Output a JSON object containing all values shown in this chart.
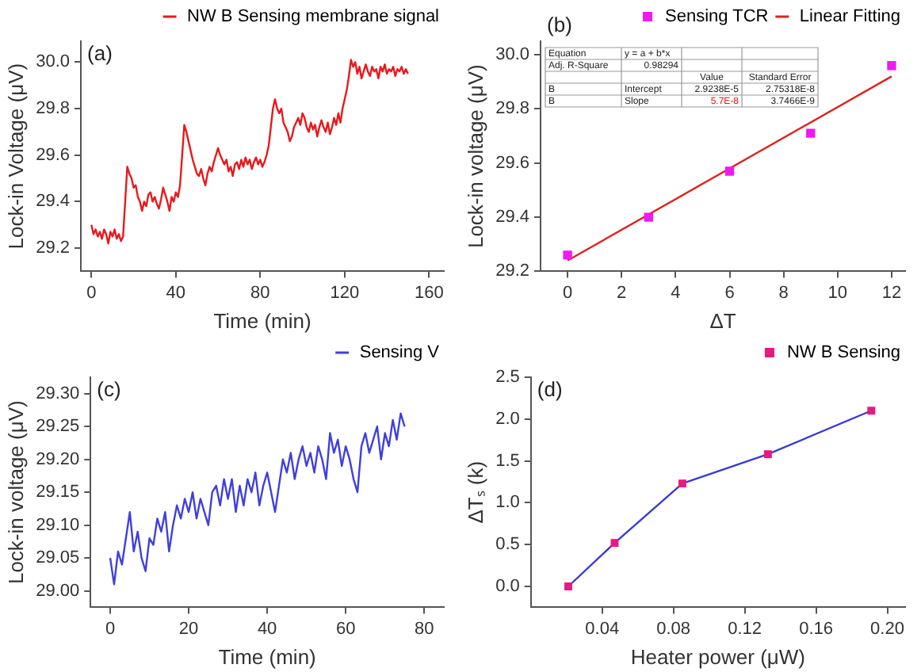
{
  "chart_data": [
    {
      "type": "line",
      "xlabel": "Time (min)",
      "ylabel": "Lock-in Voltage (μV)",
      "annotations": [
        "(a)"
      ],
      "legend": "top right",
      "xlim": [
        -5,
        167
      ],
      "xticks": [
        0,
        40,
        80,
        120,
        160
      ],
      "ylim": [
        29.1,
        30.09
      ],
      "yticks": [
        {
          "value": 29.2,
          "label": "29.2"
        },
        {
          "value": 29.4,
          "label": "29.4"
        },
        {
          "value": 29.6,
          "label": "29.6"
        },
        {
          "value": 29.8,
          "label": "29.8"
        },
        {
          "value": 30.0,
          "label": "30.0"
        }
      ],
      "x": [
        0,
        1,
        2,
        3,
        4,
        5,
        6,
        7,
        8,
        9,
        10,
        11,
        12,
        13,
        14,
        15,
        16,
        17,
        18,
        19,
        20,
        21,
        22,
        23,
        24,
        25,
        26,
        27,
        28,
        29,
        30,
        31,
        32,
        33,
        34,
        35,
        36,
        37,
        38,
        39,
        40,
        41,
        42,
        43,
        44,
        45,
        46,
        47,
        48,
        49,
        50,
        51,
        52,
        53,
        54,
        55,
        56,
        57,
        58,
        59,
        60,
        61,
        62,
        63,
        64,
        65,
        66,
        67,
        68,
        69,
        70,
        71,
        72,
        73,
        74,
        75,
        76,
        77,
        78,
        79,
        80,
        81,
        82,
        83,
        84,
        85,
        86,
        87,
        88,
        89,
        90,
        91,
        92,
        93,
        94,
        95,
        96,
        97,
        98,
        99,
        100,
        101,
        102,
        103,
        104,
        105,
        106,
        107,
        108,
        109,
        110,
        111,
        112,
        113,
        114,
        115,
        116,
        117,
        118,
        119,
        120,
        121,
        122,
        123,
        124,
        125,
        126,
        127,
        128,
        129,
        130,
        131,
        132,
        133,
        134,
        135,
        136,
        137,
        138,
        139,
        140,
        141,
        142,
        143,
        144,
        145,
        146,
        147,
        148,
        149,
        150
      ],
      "series": [
        {
          "name": "NW B Sensing membrane signal",
          "color": "#e8191c",
          "values": [
            29.3,
            29.26,
            29.28,
            29.25,
            29.27,
            29.24,
            29.28,
            29.26,
            29.22,
            29.27,
            29.25,
            29.28,
            29.24,
            29.26,
            29.23,
            29.25,
            29.4,
            29.55,
            29.52,
            29.5,
            29.46,
            29.47,
            29.42,
            29.4,
            29.36,
            29.4,
            29.38,
            29.43,
            29.44,
            29.4,
            29.42,
            29.39,
            29.37,
            29.41,
            29.46,
            29.43,
            29.4,
            29.36,
            29.42,
            29.4,
            29.44,
            29.42,
            29.47,
            29.6,
            29.73,
            29.7,
            29.66,
            29.62,
            29.58,
            29.55,
            29.52,
            29.51,
            29.54,
            29.5,
            29.47,
            29.52,
            29.55,
            29.53,
            29.57,
            29.6,
            29.63,
            29.6,
            29.58,
            29.56,
            29.58,
            29.53,
            29.55,
            29.51,
            29.56,
            29.57,
            29.54,
            29.58,
            29.55,
            29.59,
            29.56,
            29.58,
            29.54,
            29.57,
            29.59,
            29.56,
            29.58,
            29.55,
            29.57,
            29.6,
            29.64,
            29.72,
            29.8,
            29.84,
            29.8,
            29.78,
            29.8,
            29.74,
            29.72,
            29.7,
            29.66,
            29.68,
            29.72,
            29.74,
            29.76,
            29.73,
            29.78,
            29.76,
            29.72,
            29.7,
            29.74,
            29.71,
            29.73,
            29.68,
            29.72,
            29.75,
            29.72,
            29.7,
            29.74,
            29.69,
            29.72,
            29.76,
            29.73,
            29.78,
            29.74,
            29.8,
            29.84,
            29.88,
            29.94,
            30.01,
            29.98,
            30.0,
            29.95,
            29.98,
            29.93,
            29.96,
            29.99,
            29.96,
            29.94,
            29.98,
            29.96,
            29.97,
            29.93,
            29.98,
            29.96,
            29.99,
            29.95,
            29.97,
            29.96,
            29.98,
            29.94,
            29.97,
            29.96,
            29.98,
            29.95,
            29.97,
            29.95
          ]
        }
      ]
    },
    {
      "type": "scatter",
      "xlabel": "ΔT",
      "ylabel": "Lock-in voltage (μV)",
      "annotations": [
        "(b)",
        "Equation",
        "y = a + b*x",
        "Adj. R-Square",
        "0.98294",
        "Value",
        "Standard Error",
        "B",
        "Intercept",
        "2.9238E-5",
        "2.75318E-8",
        "B",
        "Slope",
        "5.7E-8",
        "3.7466E-9"
      ],
      "legend": "top right",
      "marker": "square",
      "xlim": [
        -1,
        12.5
      ],
      "xticks": [
        0,
        2,
        4,
        6,
        8,
        10,
        12
      ],
      "ylim": [
        29.2,
        30.05
      ],
      "yticks": [
        {
          "value": 29.2,
          "label": "29.2"
        },
        {
          "value": 29.4,
          "label": "29.4"
        },
        {
          "value": 29.6,
          "label": "29.6"
        },
        {
          "value": 29.8,
          "label": "29.8"
        },
        {
          "value": 30.0,
          "label": "30.0"
        }
      ],
      "x": [
        0,
        3,
        6,
        9,
        12
      ],
      "series": [
        {
          "name": "Sensing TCR",
          "color": "#f019f0",
          "values": [
            29.26,
            29.4,
            29.57,
            29.71,
            29.96
          ]
        },
        {
          "name": "Linear Fitting",
          "type": "line",
          "marker": "none",
          "color": "#dd2222",
          "x": [
            0,
            12
          ],
          "values": [
            29.24,
            29.92
          ]
        }
      ]
    },
    {
      "type": "line",
      "xlabel": "Time (min)",
      "ylabel": "Lock-in voltage (μV)",
      "annotations": [
        "(c)"
      ],
      "legend": "top right",
      "xlim": [
        -5,
        85
      ],
      "xticks": [
        0,
        20,
        40,
        60,
        80
      ],
      "ylim": [
        28.975,
        29.325
      ],
      "yticks": [
        {
          "value": 29.0,
          "label": "29.00"
        },
        {
          "value": 29.05,
          "label": "29.05"
        },
        {
          "value": 29.1,
          "label": "29.10"
        },
        {
          "value": 29.15,
          "label": "29.15"
        },
        {
          "value": 29.2,
          "label": "29.20"
        },
        {
          "value": 29.25,
          "label": "29.25"
        },
        {
          "value": 29.3,
          "label": "29.30"
        }
      ],
      "x": [
        0,
        1,
        2,
        3,
        4,
        5,
        6,
        7,
        8,
        9,
        10,
        11,
        12,
        13,
        14,
        15,
        16,
        17,
        18,
        19,
        20,
        21,
        22,
        23,
        24,
        25,
        26,
        27,
        28,
        29,
        30,
        31,
        32,
        33,
        34,
        35,
        36,
        37,
        38,
        39,
        40,
        41,
        42,
        43,
        44,
        45,
        46,
        47,
        48,
        49,
        50,
        51,
        52,
        53,
        54,
        55,
        56,
        57,
        58,
        59,
        60,
        61,
        62,
        63,
        64,
        65,
        66,
        67,
        68,
        69,
        70,
        71,
        72,
        73,
        74,
        75
      ],
      "series": [
        {
          "name": "Sensing V",
          "color": "#3f3fe0",
          "values": [
            29.05,
            29.01,
            29.06,
            29.04,
            29.08,
            29.12,
            29.06,
            29.09,
            29.05,
            29.03,
            29.08,
            29.07,
            29.11,
            29.09,
            29.12,
            29.06,
            29.1,
            29.13,
            29.11,
            29.14,
            29.12,
            29.15,
            29.11,
            29.14,
            29.12,
            29.1,
            29.15,
            29.16,
            29.13,
            29.17,
            29.14,
            29.17,
            29.12,
            29.16,
            29.13,
            29.17,
            29.15,
            29.18,
            29.13,
            29.16,
            29.18,
            29.15,
            29.12,
            29.16,
            29.2,
            29.18,
            29.21,
            29.17,
            29.2,
            29.22,
            29.19,
            29.21,
            29.18,
            29.22,
            29.2,
            29.17,
            29.24,
            29.21,
            29.23,
            29.19,
            29.22,
            29.2,
            29.17,
            29.15,
            29.22,
            29.24,
            29.21,
            29.23,
            29.25,
            29.2,
            29.24,
            29.22,
            29.26,
            29.23,
            29.27,
            29.25
          ]
        }
      ]
    },
    {
      "type": "line",
      "xlabel": "Heater power (μW)",
      "ylabel": "ΔTₛ (k)",
      "annotations": [
        "(d)"
      ],
      "legend": "top right",
      "marker": "square",
      "xlim": [
        0,
        0.21
      ],
      "xticks": [
        {
          "value": 0.04,
          "label": "0.04"
        },
        {
          "value": 0.08,
          "label": "0.08"
        },
        {
          "value": 0.12,
          "label": "0.12"
        },
        {
          "value": 0.16,
          "label": "0.16"
        },
        {
          "value": 0.2,
          "label": "0.20"
        }
      ],
      "ylim": [
        -0.25,
        2.5
      ],
      "yticks": [
        {
          "value": 0,
          "label": "0.0"
        },
        {
          "value": 0.5,
          "label": "0.5"
        },
        {
          "value": 1,
          "label": "1.0"
        },
        {
          "value": 1.5,
          "label": "1.5"
        },
        {
          "value": 2,
          "label": "2.0"
        },
        {
          "value": 2.5,
          "label": "2.5"
        }
      ],
      "x": [
        0.021,
        0.047,
        0.085,
        0.133,
        0.191
      ],
      "series": [
        {
          "name": "NW B Sensing",
          "color": "#3a3ad0",
          "colors": [
            "#e8197f",
            "#e8197f",
            "#e8197f",
            "#e8197f",
            "#e8197f"
          ],
          "values": [
            0,
            0.52,
            1.23,
            1.58,
            2.1
          ]
        }
      ]
    }
  ]
}
